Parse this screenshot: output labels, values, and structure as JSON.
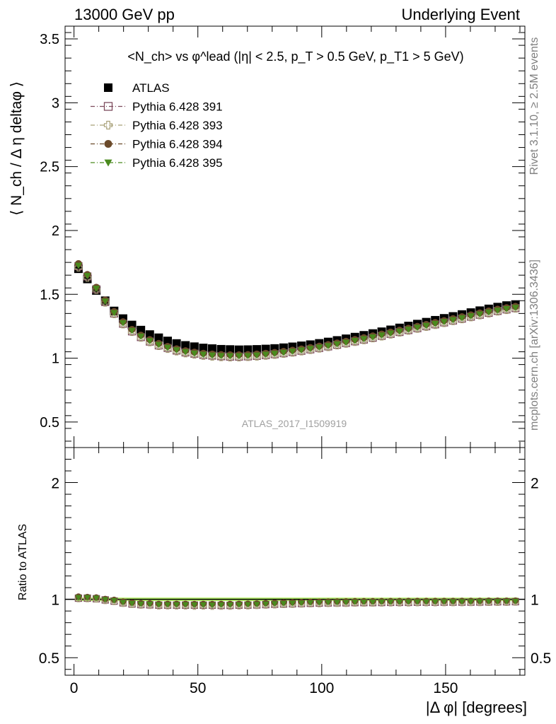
{
  "header": {
    "left": "13000 GeV pp",
    "right": "Underlying Event"
  },
  "side_labels": {
    "rivet": "Rivet 3.1.10, ≥ 2.5M events",
    "mcplots": "mcplots.cern.ch [arXiv:1306.3436]"
  },
  "watermark": "ATLAS_2017_I1509919",
  "colors": {
    "atlas": "#000000",
    "p391": "#7d4b5d",
    "p393": "#a8a078",
    "p394": "#6b4a2a",
    "p395": "#4a8a1e",
    "band": "#b5f06a"
  },
  "chart_data": [
    {
      "type": "line",
      "title": "<N_ch> vs φ^lead (|η| < 2.5, p_T > 0.5 GeV, p_T1 > 5 GeV)",
      "xlabel": "",
      "ylabel": "⟨ N_ch / Δ η deltaφ ⟩",
      "xlim": [
        -3.6,
        182
      ],
      "ylim": [
        0.3,
        3.6
      ],
      "yticks": [
        0.5,
        1,
        1.5,
        2,
        2.5,
        3,
        3.5
      ],
      "ytick_labels": [
        "0.5",
        "1",
        "1.5",
        "2",
        "2.5",
        "3",
        "3.5"
      ],
      "legend_position": "top-left",
      "x": [
        1.8,
        5.4,
        9.0,
        12.6,
        16.2,
        19.8,
        23.4,
        27.0,
        30.6,
        34.2,
        37.8,
        41.4,
        45.0,
        48.6,
        52.2,
        55.8,
        59.4,
        63.0,
        66.6,
        70.2,
        73.8,
        77.4,
        81.0,
        84.6,
        88.2,
        91.8,
        95.4,
        99.0,
        102.6,
        106.2,
        109.8,
        113.4,
        117.0,
        120.6,
        124.2,
        127.8,
        131.4,
        135.0,
        138.6,
        142.2,
        145.8,
        149.4,
        153.0,
        156.6,
        160.2,
        163.8,
        167.4,
        171.0,
        174.6,
        178.2
      ],
      "series": [
        {
          "name": "ATLAS",
          "marker": "filled-square",
          "values": [
            1.7,
            1.62,
            1.53,
            1.45,
            1.37,
            1.31,
            1.26,
            1.22,
            1.185,
            1.16,
            1.135,
            1.115,
            1.1,
            1.09,
            1.08,
            1.075,
            1.07,
            1.068,
            1.066,
            1.067,
            1.069,
            1.072,
            1.076,
            1.082,
            1.089,
            1.097,
            1.106,
            1.116,
            1.127,
            1.139,
            1.152,
            1.165,
            1.179,
            1.193,
            1.207,
            1.222,
            1.237,
            1.252,
            1.267,
            1.282,
            1.297,
            1.312,
            1.327,
            1.342,
            1.357,
            1.372,
            1.386,
            1.4,
            1.412,
            1.42
          ]
        },
        {
          "name": "Pythia 6.428 391",
          "marker": "open-square",
          "values": [
            1.72,
            1.64,
            1.54,
            1.44,
            1.35,
            1.27,
            1.21,
            1.165,
            1.13,
            1.1,
            1.08,
            1.06,
            1.045,
            1.035,
            1.025,
            1.02,
            1.015,
            1.012,
            1.012,
            1.014,
            1.018,
            1.024,
            1.031,
            1.039,
            1.048,
            1.058,
            1.069,
            1.08,
            1.092,
            1.105,
            1.118,
            1.132,
            1.146,
            1.16,
            1.175,
            1.19,
            1.205,
            1.22,
            1.235,
            1.25,
            1.265,
            1.28,
            1.295,
            1.31,
            1.325,
            1.34,
            1.355,
            1.37,
            1.382,
            1.392
          ]
        },
        {
          "name": "Pythia 6.428 393",
          "marker": "open-cross",
          "values": [
            1.71,
            1.63,
            1.535,
            1.435,
            1.345,
            1.265,
            1.205,
            1.16,
            1.125,
            1.095,
            1.072,
            1.053,
            1.038,
            1.027,
            1.018,
            1.012,
            1.008,
            1.006,
            1.006,
            1.009,
            1.013,
            1.019,
            1.026,
            1.034,
            1.043,
            1.053,
            1.064,
            1.075,
            1.087,
            1.1,
            1.113,
            1.127,
            1.141,
            1.155,
            1.17,
            1.185,
            1.2,
            1.215,
            1.23,
            1.245,
            1.26,
            1.275,
            1.29,
            1.305,
            1.32,
            1.335,
            1.35,
            1.365,
            1.377,
            1.388
          ]
        },
        {
          "name": "Pythia 6.428 394",
          "marker": "filled-circle",
          "values": [
            1.74,
            1.655,
            1.555,
            1.455,
            1.365,
            1.285,
            1.225,
            1.18,
            1.145,
            1.115,
            1.092,
            1.073,
            1.058,
            1.047,
            1.038,
            1.032,
            1.028,
            1.026,
            1.026,
            1.028,
            1.032,
            1.038,
            1.045,
            1.053,
            1.062,
            1.072,
            1.083,
            1.094,
            1.106,
            1.119,
            1.132,
            1.146,
            1.16,
            1.174,
            1.189,
            1.204,
            1.219,
            1.234,
            1.249,
            1.264,
            1.279,
            1.294,
            1.309,
            1.324,
            1.339,
            1.354,
            1.369,
            1.383,
            1.395,
            1.405
          ]
        },
        {
          "name": "Pythia 6.428 395",
          "marker": "filled-triangle-down",
          "values": [
            1.725,
            1.645,
            1.545,
            1.445,
            1.355,
            1.275,
            1.215,
            1.17,
            1.135,
            1.105,
            1.082,
            1.063,
            1.048,
            1.037,
            1.028,
            1.022,
            1.018,
            1.016,
            1.016,
            1.018,
            1.022,
            1.028,
            1.035,
            1.043,
            1.052,
            1.062,
            1.073,
            1.084,
            1.096,
            1.109,
            1.122,
            1.136,
            1.15,
            1.164,
            1.179,
            1.194,
            1.209,
            1.224,
            1.239,
            1.254,
            1.269,
            1.284,
            1.299,
            1.314,
            1.329,
            1.344,
            1.359,
            1.373,
            1.385,
            1.395
          ]
        }
      ]
    },
    {
      "type": "line",
      "title": "",
      "xlabel": "|Δ φ| [degrees]",
      "ylabel": "Ratio to ATLAS",
      "xlim": [
        -3.6,
        182
      ],
      "ylim": [
        0.35,
        2.3
      ],
      "yticks": [
        0.5,
        1,
        2
      ],
      "ytick_labels": [
        "0.5",
        "1",
        "2"
      ],
      "xticks": [
        0,
        50,
        100,
        150
      ],
      "xtick_labels": [
        "0",
        "50",
        "100",
        "150"
      ],
      "reference_line": 1.0,
      "band": [
        0.985,
        1.015
      ],
      "x": [
        1.8,
        5.4,
        9.0,
        12.6,
        16.2,
        19.8,
        23.4,
        27.0,
        30.6,
        34.2,
        37.8,
        41.4,
        45.0,
        48.6,
        52.2,
        55.8,
        59.4,
        63.0,
        66.6,
        70.2,
        73.8,
        77.4,
        81.0,
        84.6,
        88.2,
        91.8,
        95.4,
        99.0,
        102.6,
        106.2,
        109.8,
        113.4,
        117.0,
        120.6,
        124.2,
        127.8,
        131.4,
        135.0,
        138.6,
        142.2,
        145.8,
        149.4,
        153.0,
        156.6,
        160.2,
        163.8,
        167.4,
        171.0,
        174.6,
        178.2
      ],
      "series": [
        {
          "name": "Pythia 6.428 391",
          "marker": "open-square",
          "values": [
            1.01,
            1.01,
            1.005,
            0.995,
            0.985,
            0.97,
            0.96,
            0.955,
            0.953,
            0.95,
            0.95,
            0.95,
            0.95,
            0.95,
            0.95,
            0.95,
            0.948,
            0.948,
            0.95,
            0.95,
            0.952,
            0.955,
            0.958,
            0.96,
            0.962,
            0.964,
            0.966,
            0.968,
            0.969,
            0.97,
            0.97,
            0.972,
            0.972,
            0.972,
            0.973,
            0.974,
            0.974,
            0.974,
            0.975,
            0.975,
            0.975,
            0.976,
            0.976,
            0.976,
            0.976,
            0.977,
            0.978,
            0.979,
            0.979,
            0.98
          ]
        },
        {
          "name": "Pythia 6.428 393",
          "marker": "open-cross",
          "values": [
            1.006,
            1.006,
            1.003,
            0.99,
            0.982,
            0.966,
            0.957,
            0.951,
            0.949,
            0.944,
            0.945,
            0.944,
            0.944,
            0.942,
            0.943,
            0.941,
            0.942,
            0.942,
            0.944,
            0.945,
            0.948,
            0.951,
            0.953,
            0.956,
            0.958,
            0.96,
            0.962,
            0.963,
            0.965,
            0.966,
            0.966,
            0.968,
            0.968,
            0.968,
            0.969,
            0.97,
            0.97,
            0.97,
            0.971,
            0.971,
            0.971,
            0.972,
            0.972,
            0.972,
            0.973,
            0.973,
            0.974,
            0.975,
            0.975,
            0.977
          ]
        },
        {
          "name": "Pythia 6.428 394",
          "marker": "filled-circle",
          "values": [
            1.024,
            1.02,
            1.016,
            1.003,
            0.996,
            0.981,
            0.972,
            0.967,
            0.966,
            0.961,
            0.962,
            0.962,
            0.962,
            0.96,
            0.961,
            0.96,
            0.961,
            0.961,
            0.962,
            0.963,
            0.965,
            0.968,
            0.971,
            0.973,
            0.975,
            0.977,
            0.979,
            0.98,
            0.981,
            0.982,
            0.983,
            0.984,
            0.984,
            0.984,
            0.985,
            0.985,
            0.985,
            0.986,
            0.986,
            0.986,
            0.986,
            0.986,
            0.986,
            0.987,
            0.987,
            0.987,
            0.988,
            0.988,
            0.988,
            0.989
          ]
        },
        {
          "name": "Pythia 6.428 395",
          "marker": "filled-triangle-down",
          "values": [
            1.015,
            1.015,
            1.01,
            0.997,
            0.989,
            0.973,
            0.964,
            0.959,
            0.958,
            0.953,
            0.953,
            0.953,
            0.953,
            0.951,
            0.952,
            0.95,
            0.951,
            0.951,
            0.953,
            0.954,
            0.956,
            0.959,
            0.962,
            0.964,
            0.966,
            0.968,
            0.97,
            0.971,
            0.973,
            0.974,
            0.974,
            0.976,
            0.976,
            0.976,
            0.977,
            0.977,
            0.977,
            0.978,
            0.978,
            0.978,
            0.978,
            0.979,
            0.979,
            0.979,
            0.979,
            0.98,
            0.981,
            0.981,
            0.981,
            0.982
          ]
        }
      ]
    }
  ]
}
